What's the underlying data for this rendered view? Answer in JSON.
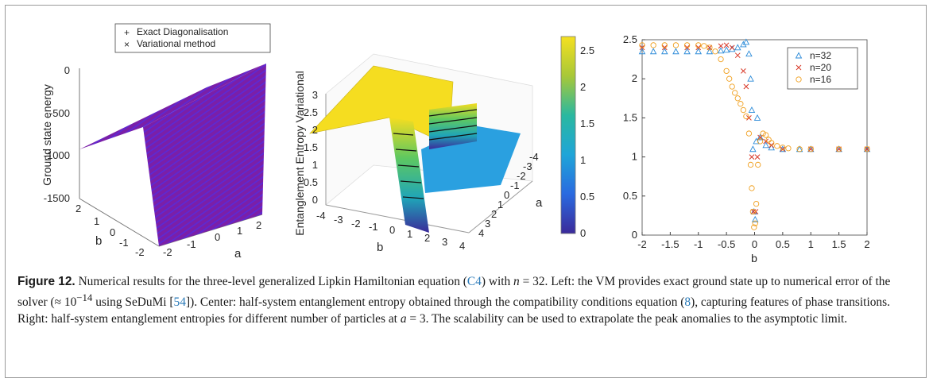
{
  "left_plot": {
    "legend": [
      "Exact Diagonalisation",
      "Variational method"
    ],
    "zlabel": "Ground state energy",
    "xlabel": "a",
    "ylabel": "b",
    "zticks": [
      "0",
      "-500",
      "-1000",
      "-1500"
    ],
    "aticks": [
      "-2",
      "-1",
      "0",
      "1",
      "2"
    ],
    "bticks": [
      "2",
      "1",
      "0",
      "-1",
      "-2"
    ],
    "colors": {
      "exact": "#2a2ad0",
      "variational": "#d02a2a",
      "surface": "#7a1fa8"
    }
  },
  "center_plot": {
    "zlabel": "Entanglement Entropy Variational",
    "xlabel": "b",
    "ylabel": "a",
    "zticks": [
      "0",
      "0.5",
      "1",
      "1.5",
      "2",
      "2.5",
      "3"
    ],
    "bticks": [
      "-4",
      "-3",
      "-2",
      "-1",
      "0",
      "1",
      "2",
      "3",
      "4"
    ],
    "aticks": [
      "4",
      "3",
      "2",
      "1",
      "0",
      "-1",
      "-2",
      "-3",
      "-4"
    ],
    "colorbar_ticks": [
      "2.5",
      "2",
      "1.5",
      "1",
      "0.5",
      "0"
    ]
  },
  "chart_data": {
    "type": "scatter",
    "title": "",
    "xlabel": "b",
    "ylabel": "",
    "xlim": [
      -2,
      2
    ],
    "ylim": [
      0,
      2.5
    ],
    "xticks": [
      "-2",
      "-1.5",
      "-1",
      "-0.5",
      "0",
      "0.5",
      "1",
      "1.5",
      "2"
    ],
    "yticks": [
      "0",
      "0.5",
      "1",
      "1.5",
      "2",
      "2.5"
    ],
    "legend_position": "top-right",
    "series": [
      {
        "name": "n=32",
        "marker": "triangle",
        "color": "#2a8ad8",
        "x": [
          -2,
          -1.8,
          -1.6,
          -1.4,
          -1.2,
          -1.0,
          -0.8,
          -0.6,
          -0.5,
          -0.4,
          -0.3,
          -0.2,
          -0.15,
          -0.1,
          -0.07,
          -0.05,
          -0.03,
          -0.01,
          0.01,
          0.03,
          0.05,
          0.1,
          0.2,
          0.3,
          0.5,
          0.8,
          1.0,
          1.5,
          2.0
        ],
        "y": [
          2.35,
          2.35,
          2.35,
          2.35,
          2.35,
          2.35,
          2.35,
          2.36,
          2.37,
          2.38,
          2.4,
          2.44,
          2.47,
          2.32,
          2.0,
          1.6,
          1.1,
          0.3,
          0.2,
          1.2,
          1.5,
          1.25,
          1.15,
          1.12,
          1.1,
          1.1,
          1.1,
          1.1,
          1.1
        ]
      },
      {
        "name": "n=20",
        "marker": "x",
        "color": "#d83a2a",
        "x": [
          -2,
          -1.6,
          -1.2,
          -1.0,
          -0.8,
          -0.6,
          -0.5,
          -0.4,
          -0.3,
          -0.2,
          -0.15,
          -0.1,
          -0.05,
          -0.02,
          0.02,
          0.05,
          0.1,
          0.2,
          0.3,
          0.5,
          1.0,
          1.5,
          2.0
        ],
        "y": [
          2.4,
          2.4,
          2.4,
          2.4,
          2.4,
          2.42,
          2.43,
          2.4,
          2.3,
          2.1,
          1.9,
          1.5,
          1.0,
          0.3,
          0.3,
          1.0,
          1.25,
          1.2,
          1.15,
          1.1,
          1.1,
          1.1,
          1.1
        ]
      },
      {
        "name": "n=16",
        "marker": "circle",
        "color": "#f0a020",
        "x": [
          -2,
          -1.8,
          -1.6,
          -1.4,
          -1.2,
          -1.0,
          -0.9,
          -0.8,
          -0.7,
          -0.6,
          -0.5,
          -0.45,
          -0.4,
          -0.35,
          -0.3,
          -0.25,
          -0.2,
          -0.15,
          -0.1,
          -0.07,
          -0.05,
          -0.03,
          -0.01,
          0.01,
          0.03,
          0.06,
          0.1,
          0.15,
          0.2,
          0.25,
          0.3,
          0.4,
          0.5,
          0.6,
          0.8,
          1.0,
          1.5,
          2.0
        ],
        "y": [
          2.43,
          2.43,
          2.43,
          2.43,
          2.43,
          2.43,
          2.42,
          2.4,
          2.35,
          2.25,
          2.1,
          2.0,
          1.9,
          1.82,
          1.75,
          1.68,
          1.6,
          1.52,
          1.3,
          0.9,
          0.6,
          0.3,
          0.1,
          0.15,
          0.4,
          0.9,
          1.2,
          1.3,
          1.28,
          1.22,
          1.18,
          1.14,
          1.12,
          1.11,
          1.1,
          1.1,
          1.1,
          1.1
        ]
      }
    ]
  },
  "caption": {
    "label": "Figure 12.",
    "text_1": "Numerical results for the three-level generalized Lipkin Hamiltonian equation (",
    "ref_1": "C4",
    "text_2": ") with ",
    "math_n": "n",
    "text_3": " = 32. Left: the VM provides exact ground state up to numerical error of the solver (≈ 10",
    "exp": "−14",
    "text_4": " using SeDuMi [",
    "ref_2": "54",
    "text_5": "]). Center: half-system entanglement entropy obtained through the compatibility conditions equation (",
    "ref_3": "8",
    "text_6": "), capturing features of phase transitions. Right: half-system entanglement entropies for different number of particles at ",
    "math_a": "a",
    "text_7": " = 3. The scalability can be used to extrapolate the peak anomalies to the asymptotic limit."
  }
}
